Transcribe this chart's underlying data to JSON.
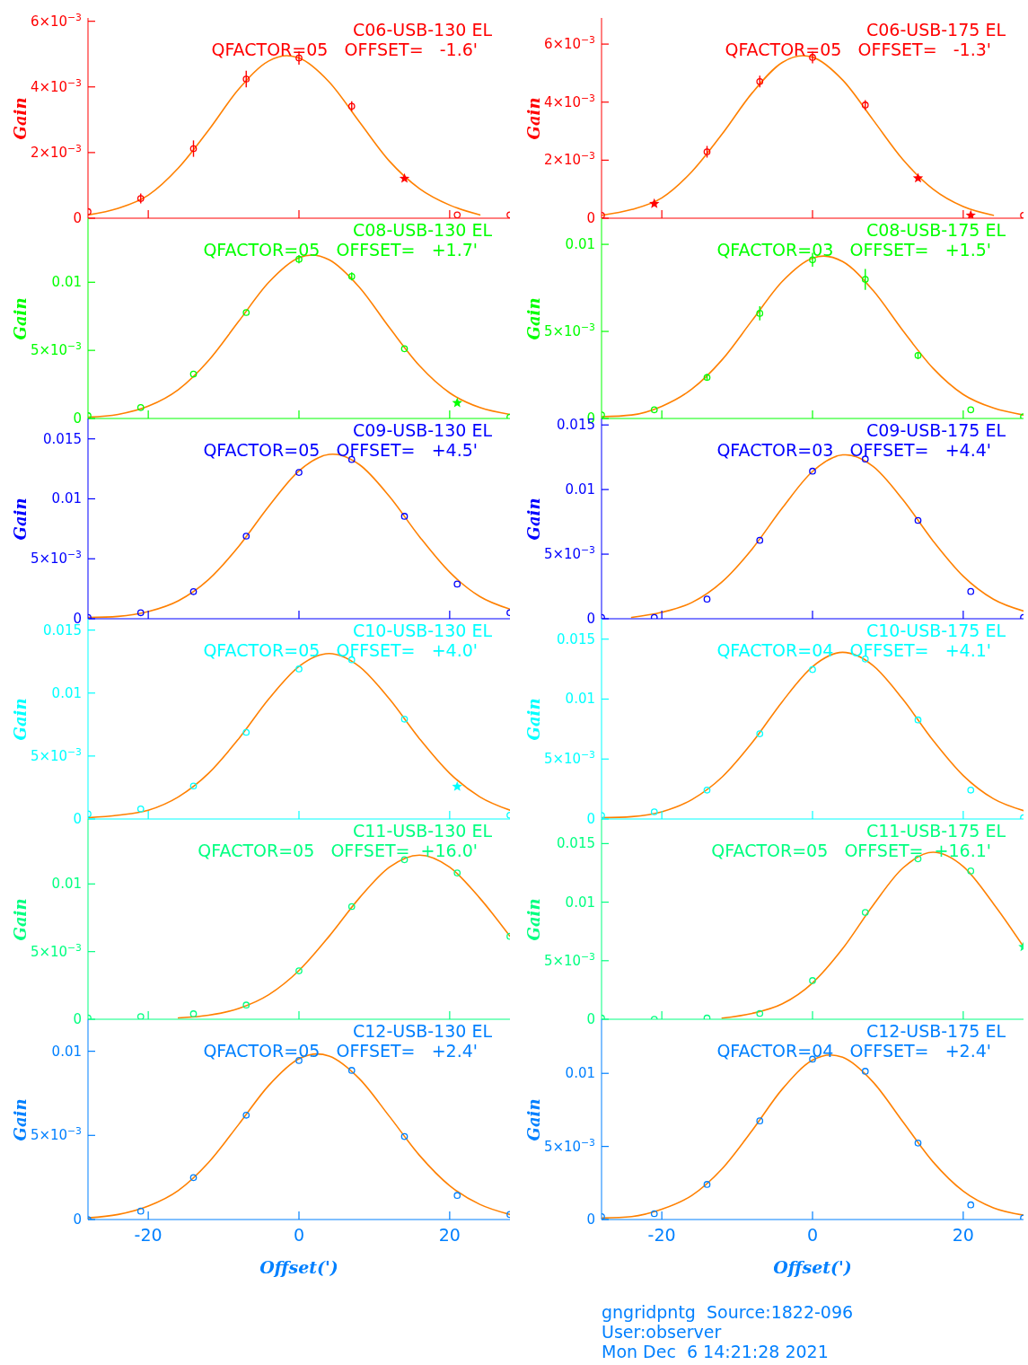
{
  "chart_data": [
    {
      "type": "scatter",
      "title": "C06-USB-130 EL",
      "subtitle": "QFACTOR=05   OFFSET=   -1.6'",
      "ylabel": "Gain",
      "tick_labels": "y",
      "xlim": [
        -28,
        28
      ],
      "xticks": [
        -20,
        0,
        20
      ],
      "ylim": [
        0,
        0.0061
      ],
      "yticks": [
        0,
        {
          "value": 0.002,
          "label": "2×10$^{−3}$"
        },
        {
          "value": 0.004,
          "label": "4×10$^{−3}$"
        },
        {
          "value": 0.006,
          "label": "6×10$^{−3}$"
        }
      ],
      "x": [
        -28,
        -21,
        -14,
        -7,
        0,
        7,
        14,
        21,
        28
      ],
      "series": [
        {
          "marker": "circle",
          "color": "#ff0000",
          "values": [
            0.0002,
            0.0006,
            0.00212,
            0.00424,
            0.00488,
            0.00341,
            null,
            0.0001,
            0.0001
          ],
          "errors": [
            null,
            0.00015,
            0.00025,
            0.00025,
            0.0002,
            0.00015,
            null,
            null,
            null
          ]
        },
        {
          "marker": "star",
          "color": "#ff0000",
          "x": [
            14
          ],
          "values": [
            0.00121
          ]
        },
        {
          "type": "line",
          "marker": "none",
          "color": "#ff8000",
          "x": [
            -28,
            -24,
            -20,
            -16,
            -12,
            -8,
            -4,
            -1.6,
            0,
            4,
            8,
            12,
            16,
            20,
            24
          ],
          "values": [
            0.0001,
            0.0003,
            0.0007,
            0.00153,
            0.00268,
            0.00393,
            0.00479,
            0.00495,
            0.00488,
            0.00415,
            0.00294,
            0.00174,
            0.0009,
            0.0004,
            0.0001
          ]
        }
      ]
    },
    {
      "type": "scatter",
      "title": "C06-USB-175 EL",
      "subtitle": "QFACTOR=05   OFFSET=   -1.3'",
      "ylabel": "Gain",
      "tick_labels": "y",
      "xlim": [
        -28,
        28
      ],
      "xticks": [
        -20,
        0,
        20
      ],
      "ylim": [
        0,
        0.0069
      ],
      "yticks": [
        0,
        {
          "value": 0.002,
          "label": "2×10$^{−3}$"
        },
        {
          "value": 0.004,
          "label": "4×10$^{−3}$"
        },
        {
          "value": 0.006,
          "label": "6×10$^{−3}$"
        }
      ],
      "x": [
        -28,
        -21,
        -14,
        -7,
        0,
        7,
        14,
        21,
        28
      ],
      "series": [
        {
          "marker": "circle",
          "color": "#ff0000",
          "values": [
            0.0001,
            null,
            0.00229,
            0.00471,
            0.00554,
            0.0039,
            null,
            null,
            0.0001
          ],
          "errors": [
            null,
            null,
            0.0002,
            0.0002,
            0.0002,
            0.00017,
            null,
            null,
            null
          ]
        },
        {
          "marker": "star",
          "color": "#ff0000",
          "x": [
            -21,
            14,
            21
          ],
          "values": [
            0.0005,
            0.00138,
            0.0001
          ]
        },
        {
          "type": "line",
          "marker": "none",
          "color": "#ff8000",
          "x": [
            -28,
            -24,
            -20,
            -16,
            -12,
            -8,
            -4,
            -1.3,
            0,
            4,
            8,
            12,
            16,
            20,
            24
          ],
          "values": [
            0.0001,
            0.0003,
            0.0007,
            0.00161,
            0.0029,
            0.00432,
            0.00537,
            0.0056,
            0.00555,
            0.00476,
            0.0034,
            0.00202,
            0.001,
            0.0004,
            0.0001
          ]
        }
      ]
    },
    {
      "type": "scatter",
      "title": "C08-USB-130 EL",
      "subtitle": "QFACTOR=05   OFFSET=   +1.7'",
      "ylabel": "Gain",
      "tick_labels": "y",
      "xlim": [
        -28,
        28
      ],
      "xticks": [
        -20,
        0,
        20
      ],
      "ylim": [
        0,
        0.0147
      ],
      "yticks": [
        0,
        {
          "value": 0.005,
          "label": "5×10$^{−3}$"
        },
        0.01
      ],
      "x": [
        -28,
        -21,
        -14,
        -7,
        0,
        7,
        14,
        21,
        28
      ],
      "series": [
        {
          "marker": "circle",
          "color": "#00ff00",
          "values": [
            0.0002,
            0.0008,
            0.00326,
            0.00778,
            0.01169,
            0.01043,
            0.00512,
            null,
            0.0001
          ],
          "errors": [
            null,
            null,
            null,
            null,
            0.0003,
            0.0003,
            null,
            null,
            null
          ]
        },
        {
          "marker": "star",
          "color": "#00ff00",
          "x": [
            21
          ],
          "values": [
            0.00114
          ]
        },
        {
          "type": "line",
          "marker": "none",
          "color": "#ff8000",
          "x": [
            -28,
            -24,
            -20,
            -16,
            -12,
            -8,
            -4,
            0,
            1.7,
            4,
            8,
            12,
            16,
            20,
            24,
            28
          ],
          "values": [
            0.0001,
            0.0003,
            0.0009,
            0.00212,
            0.00425,
            0.00713,
            0.01,
            0.0118,
            0.012,
            0.01165,
            0.00964,
            0.00667,
            0.00387,
            0.00188,
            0.0008,
            0.0003
          ]
        }
      ]
    },
    {
      "type": "scatter",
      "title": "C08-USB-175 EL",
      "subtitle": "QFACTOR=03   OFFSET=   +1.5'",
      "ylabel": "Gain",
      "tick_labels": "y",
      "xlim": [
        -28,
        28
      ],
      "xticks": [
        -20,
        0,
        20
      ],
      "ylim": [
        0,
        0.0115
      ],
      "yticks": [
        0,
        {
          "value": 0.005,
          "label": "5×10$^{−3}$"
        },
        0.01
      ],
      "x": [
        -28,
        -21,
        -14,
        -7,
        0,
        7,
        14,
        21,
        28
      ],
      "series": [
        {
          "marker": "circle",
          "color": "#00ff00",
          "values": [
            0.0002,
            0.0005,
            0.00236,
            0.00604,
            0.00911,
            0.00799,
            0.00362,
            0.0005,
            0.0001
          ],
          "errors": [
            null,
            null,
            0.0002,
            0.0004,
            0.0004,
            0.0006,
            0.0002,
            null,
            null
          ]
        },
        {
          "type": "line",
          "marker": "none",
          "color": "#ff8000",
          "x": [
            -28,
            -24,
            -20,
            -16,
            -12,
            -8,
            -4,
            0,
            1.5,
            4,
            8,
            12,
            16,
            20,
            24,
            28
          ],
          "values": [
            0.0001,
            0.0002,
            0.0007,
            0.00169,
            0.00337,
            0.00564,
            0.00788,
            0.00921,
            0.00933,
            0.00901,
            0.00737,
            0.00504,
            0.00288,
            0.00138,
            0.0006,
            0.0002
          ]
        }
      ]
    },
    {
      "type": "scatter",
      "title": "C09-USB-130 EL",
      "subtitle": "QFACTOR=05   OFFSET=   +4.5'",
      "ylabel": "Gain",
      "tick_labels": "y",
      "xlim": [
        -28,
        28
      ],
      "xticks": [
        -20,
        0,
        20
      ],
      "ylim": [
        0,
        0.0167
      ],
      "yticks": [
        0,
        {
          "value": 0.005,
          "label": "5×10$^{−3}$"
        },
        0.01,
        0.015
      ],
      "x": [
        -28,
        -21,
        -14,
        -7,
        0,
        7,
        14,
        21,
        28
      ],
      "series": [
        {
          "marker": "circle",
          "color": "#0000ff",
          "values": [
            0.0001,
            0.0005,
            0.00226,
            0.00689,
            0.0122,
            0.01328,
            0.00854,
            0.00289,
            0.0005
          ]
        },
        {
          "type": "line",
          "marker": "none",
          "color": "#ff8000",
          "x": [
            -28,
            -24,
            -20,
            -16,
            -12,
            -8,
            -4,
            0,
            4,
            4.5,
            8,
            12,
            16,
            20,
            24,
            28
          ],
          "values": [
            0.0001,
            0.0002,
            0.0006,
            0.0015,
            0.00327,
            0.00603,
            0.00938,
            0.01233,
            0.0137,
            0.01372,
            0.01286,
            0.0102,
            0.00684,
            0.00388,
            0.00185,
            0.0008
          ]
        }
      ]
    },
    {
      "type": "scatter",
      "title": "C09-USB-175 EL",
      "subtitle": "QFACTOR=03   OFFSET=   +4.4'",
      "ylabel": "Gain",
      "tick_labels": "y",
      "xlim": [
        -28,
        28
      ],
      "xticks": [
        -20,
        0,
        20
      ],
      "ylim": [
        0,
        0.0155
      ],
      "yticks": [
        0,
        {
          "value": 0.005,
          "label": "5×10$^{−3}$"
        },
        0.01,
        0.015
      ],
      "x": [
        -28,
        -21,
        -14,
        -7,
        0,
        7,
        14,
        21,
        28
      ],
      "series": [
        {
          "marker": "circle",
          "color": "#0000ff",
          "values": [
            0.0001,
            0.0001,
            0.00152,
            0.00607,
            0.01142,
            0.01236,
            0.00761,
            0.00211,
            0.0001
          ]
        },
        {
          "type": "line",
          "marker": "none",
          "color": "#ff8000",
          "x": [
            -24,
            -20,
            -16,
            -12,
            -8,
            -4,
            0,
            4,
            4.4,
            8,
            12,
            16,
            20,
            24,
            28
          ],
          "values": [
            0.0001,
            0.0005,
            0.00126,
            0.00286,
            0.00541,
            0.00858,
            0.0114,
            0.01268,
            0.01269,
            0.01181,
            0.00921,
            0.00602,
            0.00329,
            0.00151,
            0.0006
          ]
        }
      ]
    },
    {
      "type": "scatter",
      "title": "C10-USB-130 EL",
      "subtitle": "QFACTOR=05   OFFSET=   +4.0'",
      "ylabel": "Gain",
      "tick_labels": "y",
      "xlim": [
        -28,
        28
      ],
      "xticks": [
        -20,
        0,
        20
      ],
      "ylim": [
        0,
        0.0159
      ],
      "yticks": [
        0,
        {
          "value": 0.005,
          "label": "5×10$^{−3}$"
        },
        0.01,
        0.015
      ],
      "x": [
        -28,
        -21,
        -14,
        -7,
        0,
        7,
        14,
        21,
        28
      ],
      "series": [
        {
          "marker": "circle",
          "color": "#00ffff",
          "values": [
            0.0004,
            0.0008,
            0.00262,
            0.00688,
            0.01191,
            0.01264,
            0.00793,
            null,
            0.0003
          ]
        },
        {
          "marker": "star",
          "color": "#00ffff",
          "x": [
            21
          ],
          "values": [
            0.00257
          ]
        },
        {
          "type": "line",
          "marker": "none",
          "color": "#ff8000",
          "x": [
            -28,
            -24,
            -20,
            -16,
            -12,
            -8,
            -4,
            0,
            4,
            8,
            12,
            16,
            20,
            24,
            28
          ],
          "values": [
            0.0001,
            0.0003,
            0.0007,
            0.00176,
            0.00363,
            0.00637,
            0.00953,
            0.01212,
            0.01314,
            0.01212,
            0.00953,
            0.00637,
            0.00363,
            0.00176,
            0.0007
          ]
        }
      ]
    },
    {
      "type": "scatter",
      "title": "C10-USB-175 EL",
      "subtitle": "QFACTOR=04   OFFSET=   +4.1'",
      "ylabel": "Gain",
      "tick_labels": "y",
      "xlim": [
        -28,
        28
      ],
      "xticks": [
        -20,
        0,
        20
      ],
      "ylim": [
        0,
        0.0167
      ],
      "yticks": [
        0,
        {
          "value": 0.005,
          "label": "5×10$^{−3}$"
        },
        0.01,
        0.015
      ],
      "x": [
        -28,
        -21,
        -14,
        -7,
        0,
        7,
        14,
        21,
        28
      ],
      "series": [
        {
          "marker": "circle",
          "color": "#00ffff",
          "values": [
            0.0003,
            0.0006,
            0.00241,
            0.00711,
            0.01246,
            0.01334,
            0.00826,
            0.00241,
            0.0001
          ]
        },
        {
          "type": "line",
          "marker": "none",
          "color": "#ff8000",
          "x": [
            -28,
            -24,
            -20,
            -16,
            -12,
            -8,
            -4,
            0,
            4,
            8,
            12,
            16,
            20,
            24,
            28
          ],
          "values": [
            0.0001,
            0.0002,
            0.0006,
            0.00162,
            0.0035,
            0.00638,
            0.0098,
            0.01271,
            0.0139,
            0.01282,
            0.00997,
            0.00655,
            0.00362,
            0.00169,
            0.0007
          ]
        }
      ]
    },
    {
      "type": "scatter",
      "title": "C11-USB-130 EL",
      "subtitle": "QFACTOR=05   OFFSET=  +16.0'",
      "ylabel": "Gain",
      "tick_labels": "y",
      "xlim": [
        -28,
        28
      ],
      "xticks": [
        -20,
        0,
        20
      ],
      "ylim": [
        0,
        0.0148
      ],
      "yticks": [
        0,
        {
          "value": 0.005,
          "label": "5×10$^{−3}$"
        },
        0.01
      ],
      "x": [
        -28,
        -21,
        -14,
        -7,
        0,
        7,
        14,
        21,
        28
      ],
      "series": [
        {
          "marker": "circle",
          "color": "#00ff80",
          "values": [
            0.0001,
            0.0002,
            0.0004,
            0.00105,
            0.00358,
            0.00833,
            0.01179,
            0.01081,
            0.00613
          ]
        },
        {
          "type": "line",
          "marker": "none",
          "color": "#ff8000",
          "x": [
            -16,
            -12,
            -8,
            -4,
            0,
            4,
            8,
            12,
            16,
            20,
            24,
            28
          ],
          "values": [
            0.0001,
            0.0003,
            0.0008,
            0.00182,
            0.0036,
            0.00613,
            0.00895,
            0.01124,
            0.01213,
            0.01124,
            0.00895,
            0.00613
          ]
        }
      ]
    },
    {
      "type": "scatter",
      "title": "C11-USB-175 EL",
      "subtitle": "QFACTOR=05   OFFSET=  +16.1'",
      "ylabel": "Gain",
      "tick_labels": "y",
      "xlim": [
        -28,
        28
      ],
      "xticks": [
        -20,
        0,
        20
      ],
      "ylim": [
        0,
        0.0171
      ],
      "yticks": [
        0,
        {
          "value": 0.005,
          "label": "5×10$^{−3}$"
        },
        0.01,
        0.015
      ],
      "series": [
        {
          "marker": "circle",
          "color": "#00ff80",
          "x": [
            -28,
            -21,
            -14,
            -7,
            0,
            7,
            14,
            21
          ],
          "values": [
            0.0001,
            0,
            0.0001,
            0.0005,
            0.0033,
            0.00912,
            0.0137,
            0.01266
          ]
        },
        {
          "marker": "star",
          "color": "#00ff80",
          "x": [
            28
          ],
          "values": [
            0.00618
          ]
        },
        {
          "type": "line",
          "marker": "none",
          "color": "#ff8000",
          "x": [
            -12,
            -8,
            -4,
            0,
            4,
            8,
            12,
            16,
            20,
            24,
            28
          ],
          "values": [
            0.0001,
            0.0005,
            0.00132,
            0.0031,
            0.00603,
            0.0097,
            0.01292,
            0.01426,
            0.01304,
            0.00988,
            0.0062
          ]
        }
      ]
    },
    {
      "type": "scatter",
      "title": "C12-USB-130 EL",
      "subtitle": "QFACTOR=05   OFFSET=   +2.4'",
      "ylabel": "Gain",
      "xlabel": "Offset(')",
      "xlim": [
        -28,
        28
      ],
      "xticks": [
        -20,
        0,
        20
      ],
      "ylim": [
        0,
        0.0119
      ],
      "yticks": [
        0,
        {
          "value": 0.005,
          "label": "5×10$^{−3}$"
        },
        0.01
      ],
      "x": [
        -28,
        -21,
        -14,
        -7,
        0,
        7,
        14,
        21,
        28
      ],
      "series": [
        {
          "marker": "circle",
          "color": "#0080ff",
          "values": [
            0,
            0.0005,
            0.00249,
            0.0062,
            0.00945,
            0.00886,
            0.00493,
            0.00143,
            0.0003
          ]
        },
        {
          "type": "line",
          "marker": "none",
          "color": "#ff8000",
          "x": [
            -28,
            -24,
            -20,
            -16,
            -12,
            -8,
            -4,
            0,
            2.4,
            4,
            8,
            12,
            16,
            20,
            24,
            28
          ],
          "values": [
            0.0001,
            0.0003,
            0.0008,
            0.00173,
            0.00339,
            0.00565,
            0.00797,
            0.00955,
            0.00984,
            0.00971,
            0.00837,
            0.00613,
            0.00381,
            0.00201,
            0.0009,
            0.0003
          ]
        }
      ]
    },
    {
      "type": "scatter",
      "title": "C12-USB-175 EL",
      "subtitle": "QFACTOR=04   OFFSET=   +2.4'",
      "ylabel": "Gain",
      "xlabel": "Offset(')",
      "xlim": [
        -28,
        28
      ],
      "xticks": [
        -20,
        0,
        20
      ],
      "ylim": [
        0,
        0.0137
      ],
      "yticks": [
        0,
        {
          "value": 0.005,
          "label": "5×10$^{−3}$"
        },
        0.01
      ],
      "x": [
        -28,
        -21,
        -14,
        -7,
        0,
        7,
        14,
        21,
        28
      ],
      "annotations": [
        "gngridpntg  Source:1822-096",
        "User:observer",
        "Mon Dec  6 14:21:28 2021"
      ],
      "series": [
        {
          "marker": "circle",
          "color": "#0080ff",
          "values": [
            0.0002,
            0.0004,
            0.0024,
            0.00675,
            0.01097,
            0.01014,
            0.00523,
            0.001,
            0.0001
          ]
        },
        {
          "type": "line",
          "marker": "none",
          "color": "#ff8000",
          "x": [
            -28,
            -24,
            -20,
            -16,
            -12,
            -8,
            -4,
            0,
            2.4,
            4,
            8,
            12,
            16,
            20,
            24,
            28
          ],
          "values": [
            0.0001,
            0.0002,
            0.0007,
            0.00165,
            0.00347,
            0.0061,
            0.00893,
            0.0109,
            0.01126,
            0.0111,
            0.00942,
            0.00668,
            0.00394,
            0.00194,
            0.0008,
            0.0003
          ]
        }
      ]
    }
  ]
}
